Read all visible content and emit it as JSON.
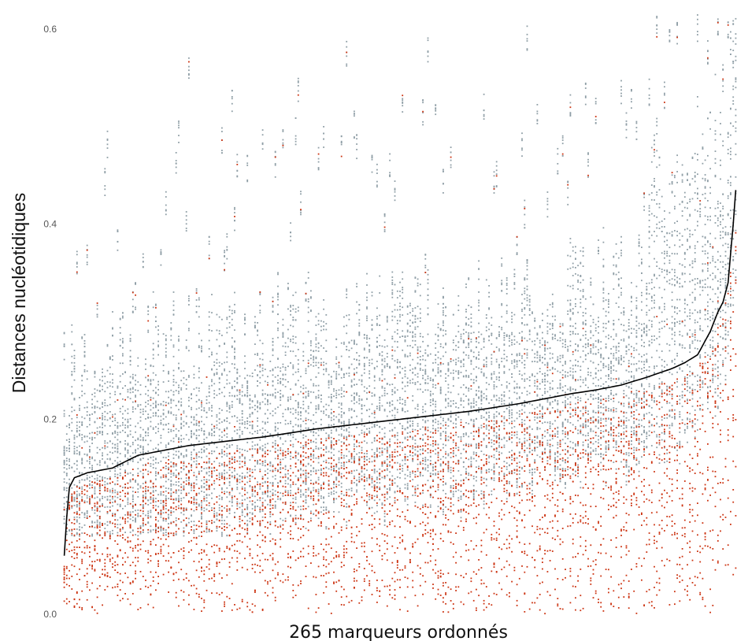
{
  "chart_data": {
    "type": "scatter",
    "xlabel": "265 marqueurs ordonnés",
    "ylabel": "Distances nucléotidiques",
    "n_markers": 265,
    "ylim": [
      0,
      0.6
    ],
    "yticks": [
      0.0,
      0.2,
      0.4,
      0.6
    ],
    "ytick_labels": [
      "0.0",
      "0.2",
      "0.4",
      "0.6"
    ],
    "grid": false,
    "colors": {
      "inter": "#8f9ea6",
      "intra": "#cc3311",
      "median": "#000000"
    },
    "series": [
      {
        "type": "scatter",
        "color": "#8f9ea6"
      },
      {
        "type": "scatter",
        "color": "#cc3311"
      },
      {
        "type": "line",
        "color": "#000000",
        "x": [
          1,
          2,
          3,
          5,
          10,
          20,
          30,
          40,
          50,
          60,
          70,
          80,
          90,
          100,
          110,
          120,
          130,
          140,
          150,
          160,
          170,
          180,
          190,
          200,
          210,
          220,
          230,
          240,
          245,
          250,
          255,
          258,
          260,
          262,
          264,
          265
        ],
        "values": [
          0.06,
          0.1,
          0.13,
          0.14,
          0.145,
          0.15,
          0.163,
          0.168,
          0.173,
          0.176,
          0.179,
          0.182,
          0.186,
          0.19,
          0.193,
          0.196,
          0.199,
          0.202,
          0.205,
          0.208,
          0.212,
          0.216,
          0.221,
          0.226,
          0.23,
          0.235,
          0.243,
          0.252,
          0.258,
          0.266,
          0.29,
          0.31,
          0.32,
          0.34,
          0.4,
          0.435
        ]
      }
    ]
  }
}
